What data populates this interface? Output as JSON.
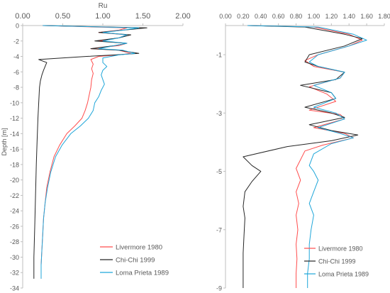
{
  "chart_data": [
    {
      "type": "line",
      "title": "",
      "xlabel": "Ru",
      "ylabel": "Depth [m]",
      "xlim": [
        0,
        2
      ],
      "ylim": [
        -34,
        0
      ],
      "x_ticks": [
        "0.00",
        "0.50",
        "1.00",
        "1.50",
        "2.00"
      ],
      "y_ticks": [
        "0",
        "-2",
        "-4",
        "-6",
        "-8",
        "-10",
        "-12",
        "-14",
        "-16",
        "-18",
        "-20",
        "-22",
        "-24",
        "-26",
        "-28",
        "-30",
        "-32",
        "-34"
      ],
      "x_axis_position": "top",
      "grid": false,
      "legend_position": "bottom-right",
      "series": [
        {
          "name": "Livermore 1980",
          "color": "#ff4d4d",
          "points": [
            [
              0.25,
              0
            ],
            [
              1.3,
              -0.3
            ],
            [
              1.2,
              -0.6
            ],
            [
              0.95,
              -0.9
            ],
            [
              1.3,
              -1.2
            ],
            [
              1.2,
              -1.6
            ],
            [
              0.95,
              -2.0
            ],
            [
              1.3,
              -2.3
            ],
            [
              1.2,
              -2.6
            ],
            [
              0.85,
              -3.0
            ],
            [
              1.2,
              -3.2
            ],
            [
              1.35,
              -3.6
            ],
            [
              1.2,
              -3.8
            ],
            [
              0.95,
              -4.0
            ],
            [
              0.85,
              -4.4
            ],
            [
              0.88,
              -5.0
            ],
            [
              0.86,
              -5.6
            ],
            [
              0.88,
              -6.2
            ],
            [
              0.86,
              -7.0
            ],
            [
              0.85,
              -8.0
            ],
            [
              0.83,
              -9.0
            ],
            [
              0.81,
              -10.0
            ],
            [
              0.78,
              -11.0
            ],
            [
              0.74,
              -12.0
            ],
            [
              0.65,
              -13.0
            ],
            [
              0.55,
              -14.0
            ],
            [
              0.46,
              -15.5
            ],
            [
              0.39,
              -17.0
            ],
            [
              0.34,
              -19.0
            ],
            [
              0.3,
              -21.0
            ],
            [
              0.28,
              -23.0
            ],
            [
              0.26,
              -25.0
            ],
            [
              0.25,
              -27.0
            ],
            [
              0.24,
              -29.0
            ],
            [
              0.23,
              -31.0
            ],
            [
              0.23,
              -32.8
            ]
          ]
        },
        {
          "name": "Chi-Chi  1999",
          "color": "#262626",
          "points": [
            [
              0.25,
              0
            ],
            [
              1.55,
              -0.3
            ],
            [
              1.25,
              -0.6
            ],
            [
              0.95,
              -0.9
            ],
            [
              1.35,
              -1.2
            ],
            [
              1.2,
              -1.6
            ],
            [
              0.9,
              -2.0
            ],
            [
              1.3,
              -2.3
            ],
            [
              1.15,
              -2.6
            ],
            [
              0.85,
              -3.0
            ],
            [
              1.2,
              -3.2
            ],
            [
              1.45,
              -3.6
            ],
            [
              1.15,
              -3.8
            ],
            [
              0.8,
              -4.0
            ],
            [
              0.2,
              -4.4
            ],
            [
              0.3,
              -4.8
            ],
            [
              0.28,
              -5.3
            ],
            [
              0.26,
              -5.8
            ],
            [
              0.24,
              -6.4
            ],
            [
              0.22,
              -7.2
            ],
            [
              0.21,
              -8.0
            ],
            [
              0.2,
              -10.0
            ],
            [
              0.19,
              -12.0
            ],
            [
              0.18,
              -15.0
            ],
            [
              0.17,
              -18.0
            ],
            [
              0.16,
              -22.0
            ],
            [
              0.15,
              -26.0
            ],
            [
              0.14,
              -30.0
            ],
            [
              0.14,
              -32.8
            ]
          ]
        },
        {
          "name": "Loma Prieta 1989",
          "color": "#1fa6d9",
          "points": [
            [
              0.25,
              0
            ],
            [
              1.45,
              -0.3
            ],
            [
              1.25,
              -0.6
            ],
            [
              1.0,
              -0.9
            ],
            [
              1.3,
              -1.2
            ],
            [
              1.2,
              -1.6
            ],
            [
              1.0,
              -2.0
            ],
            [
              1.3,
              -2.3
            ],
            [
              1.15,
              -2.6
            ],
            [
              0.95,
              -3.0
            ],
            [
              1.25,
              -3.2
            ],
            [
              1.4,
              -3.6
            ],
            [
              1.2,
              -3.8
            ],
            [
              1.0,
              -4.2
            ],
            [
              1.0,
              -4.8
            ],
            [
              1.05,
              -5.3
            ],
            [
              1.0,
              -5.8
            ],
            [
              0.98,
              -6.4
            ],
            [
              1.0,
              -7.0
            ],
            [
              1.02,
              -7.6
            ],
            [
              0.98,
              -8.4
            ],
            [
              0.95,
              -9.2
            ],
            [
              0.9,
              -10.0
            ],
            [
              0.88,
              -11.0
            ],
            [
              0.82,
              -12.0
            ],
            [
              0.72,
              -13.0
            ],
            [
              0.6,
              -14.0
            ],
            [
              0.49,
              -15.5
            ],
            [
              0.41,
              -17.0
            ],
            [
              0.35,
              -19.0
            ],
            [
              0.31,
              -21.0
            ],
            [
              0.28,
              -23.0
            ],
            [
              0.26,
              -25.0
            ],
            [
              0.25,
              -27.0
            ],
            [
              0.24,
              -29.0
            ],
            [
              0.23,
              -31.0
            ],
            [
              0.23,
              -32.8
            ]
          ]
        }
      ]
    },
    {
      "type": "line",
      "title": "",
      "xlabel": "",
      "ylabel": "",
      "xlim": [
        0,
        1.8
      ],
      "ylim": [
        -9,
        0
      ],
      "x_ticks": [
        "0.00",
        "0.20",
        "0.40",
        "0.60",
        "0.80",
        "1.00",
        "1.20",
        "1.40",
        "1.60",
        "1.80"
      ],
      "y_ticks": [
        "-1",
        "-3",
        "-5",
        "-7",
        "-9"
      ],
      "x_axis_position": "top",
      "grid": false,
      "legend_position": "bottom-right",
      "series": [
        {
          "name": "Livermore 1980",
          "color": "#ff4d4d",
          "points": [
            [
              0.25,
              0
            ],
            [
              1.0,
              -0.05
            ],
            [
              1.4,
              -0.3
            ],
            [
              1.55,
              -0.5
            ],
            [
              1.4,
              -0.7
            ],
            [
              1.05,
              -1.0
            ],
            [
              0.9,
              -1.2
            ],
            [
              1.0,
              -1.4
            ],
            [
              1.35,
              -1.6
            ],
            [
              1.3,
              -1.8
            ],
            [
              0.95,
              -2.1
            ],
            [
              1.15,
              -2.35
            ],
            [
              1.25,
              -2.6
            ],
            [
              0.95,
              -2.9
            ],
            [
              1.3,
              -3.05
            ],
            [
              1.35,
              -3.2
            ],
            [
              1.0,
              -3.5
            ],
            [
              1.35,
              -3.7
            ],
            [
              1.45,
              -3.85
            ],
            [
              1.1,
              -4.1
            ],
            [
              0.9,
              -4.3
            ],
            [
              0.85,
              -4.6
            ],
            [
              0.8,
              -4.9
            ],
            [
              0.85,
              -5.3
            ],
            [
              0.8,
              -5.7
            ],
            [
              0.83,
              -6.1
            ],
            [
              0.8,
              -6.5
            ],
            [
              0.82,
              -7.0
            ],
            [
              0.8,
              -7.5
            ],
            [
              0.81,
              -8.0
            ],
            [
              0.8,
              -8.5
            ],
            [
              0.8,
              -9.0
            ]
          ]
        },
        {
          "name": "Chi-Chi  1999",
          "color": "#262626",
          "points": [
            [
              0.25,
              0
            ],
            [
              0.9,
              -0.05
            ],
            [
              1.35,
              -0.3
            ],
            [
              1.55,
              -0.45
            ],
            [
              1.35,
              -0.7
            ],
            [
              0.95,
              -1.0
            ],
            [
              0.9,
              -1.25
            ],
            [
              1.05,
              -1.4
            ],
            [
              1.35,
              -1.6
            ],
            [
              1.25,
              -1.85
            ],
            [
              0.85,
              -2.05
            ],
            [
              1.2,
              -2.3
            ],
            [
              1.25,
              -2.5
            ],
            [
              0.9,
              -2.8
            ],
            [
              1.2,
              -3.0
            ],
            [
              1.35,
              -3.15
            ],
            [
              0.95,
              -3.4
            ],
            [
              1.2,
              -3.6
            ],
            [
              1.5,
              -3.75
            ],
            [
              1.2,
              -3.95
            ],
            [
              0.7,
              -4.15
            ],
            [
              0.2,
              -4.5
            ],
            [
              0.3,
              -4.8
            ],
            [
              0.4,
              -5.0
            ],
            [
              0.3,
              -5.35
            ],
            [
              0.22,
              -5.7
            ],
            [
              0.2,
              -6.2
            ],
            [
              0.22,
              -6.6
            ],
            [
              0.21,
              -7.2
            ],
            [
              0.2,
              -7.8
            ],
            [
              0.2,
              -8.4
            ],
            [
              0.2,
              -9.0
            ]
          ]
        },
        {
          "name": "Loma Prieta 1989",
          "color": "#1fa6d9",
          "points": [
            [
              0.25,
              0
            ],
            [
              1.05,
              -0.05
            ],
            [
              1.45,
              -0.3
            ],
            [
              1.6,
              -0.5
            ],
            [
              1.4,
              -0.7
            ],
            [
              1.05,
              -1.0
            ],
            [
              0.95,
              -1.25
            ],
            [
              1.05,
              -1.4
            ],
            [
              1.35,
              -1.6
            ],
            [
              1.3,
              -1.8
            ],
            [
              1.0,
              -2.05
            ],
            [
              1.2,
              -2.3
            ],
            [
              1.25,
              -2.5
            ],
            [
              1.0,
              -2.8
            ],
            [
              1.25,
              -3.0
            ],
            [
              1.35,
              -3.2
            ],
            [
              1.05,
              -3.5
            ],
            [
              1.3,
              -3.7
            ],
            [
              1.45,
              -3.85
            ],
            [
              1.2,
              -4.05
            ],
            [
              1.0,
              -4.4
            ],
            [
              0.95,
              -4.8
            ],
            [
              1.0,
              -5.0
            ],
            [
              1.05,
              -5.3
            ],
            [
              1.0,
              -5.7
            ],
            [
              0.95,
              -6.1
            ],
            [
              1.0,
              -6.5
            ],
            [
              0.97,
              -7.0
            ],
            [
              0.95,
              -7.5
            ],
            [
              0.95,
              -8.0
            ],
            [
              0.93,
              -8.5
            ],
            [
              0.93,
              -9.0
            ]
          ]
        }
      ]
    }
  ]
}
